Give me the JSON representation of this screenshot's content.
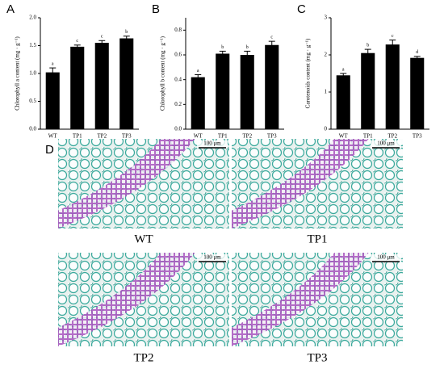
{
  "chart_data": [
    {
      "type": "bar",
      "panel": "A",
      "y_label": "Chlorophyll a content (mg · g⁻¹)",
      "categories": [
        "WT",
        "TP1",
        "TP2",
        "TP3"
      ],
      "values": [
        1.02,
        1.48,
        1.55,
        1.63
      ],
      "errors": [
        0.08,
        0.03,
        0.04,
        0.04
      ],
      "annotations": [
        "a",
        "c",
        "c",
        "b"
      ],
      "color": "#000000",
      "ylim": [
        0,
        2.0
      ],
      "yticks": [
        {
          "value": 0,
          "label": "0.0"
        },
        {
          "value": 0.5,
          "label": "0.5"
        },
        {
          "value": 1.0,
          "label": "1.0"
        },
        {
          "value": 1.5,
          "label": "1.5"
        },
        {
          "value": 2.0,
          "label": "2.0"
        }
      ]
    },
    {
      "type": "bar",
      "panel": "B",
      "y_label": "Chlorophyll b content (mg · g⁻¹)",
      "categories": [
        "WT",
        "TP1",
        "TP2",
        "TP3"
      ],
      "values": [
        0.42,
        0.61,
        0.6,
        0.68
      ],
      "errors": [
        0.02,
        0.02,
        0.03,
        0.03
      ],
      "annotations": [
        "a",
        "b",
        "b",
        "c"
      ],
      "color": "#000000",
      "ylim": [
        0,
        0.9
      ],
      "yticks": [
        {
          "value": 0,
          "label": "0.0"
        },
        0.2,
        0.4,
        0.6,
        0.8
      ]
    },
    {
      "type": "bar",
      "panel": "C",
      "y_label": "Carotenoids content (mg · g⁻¹)",
      "categories": [
        "WT",
        "TP1",
        "TP2",
        "TP3"
      ],
      "values": [
        1.45,
        2.05,
        2.28,
        1.92
      ],
      "errors": [
        0.05,
        0.1,
        0.12,
        0.04
      ],
      "annotations": [
        "a",
        "b",
        "c",
        "d"
      ],
      "color": "#000000",
      "ylim": [
        0,
        3
      ],
      "yticks": [
        0,
        1,
        2,
        3
      ]
    }
  ],
  "micrographs": {
    "panel": "D",
    "images": [
      {
        "label": "WT",
        "scale": "100 μm"
      },
      {
        "label": "TP1",
        "scale": "100 μm"
      },
      {
        "label": "TP2",
        "scale": "100 μm"
      },
      {
        "label": "TP3",
        "scale": "100 μm"
      }
    ]
  }
}
